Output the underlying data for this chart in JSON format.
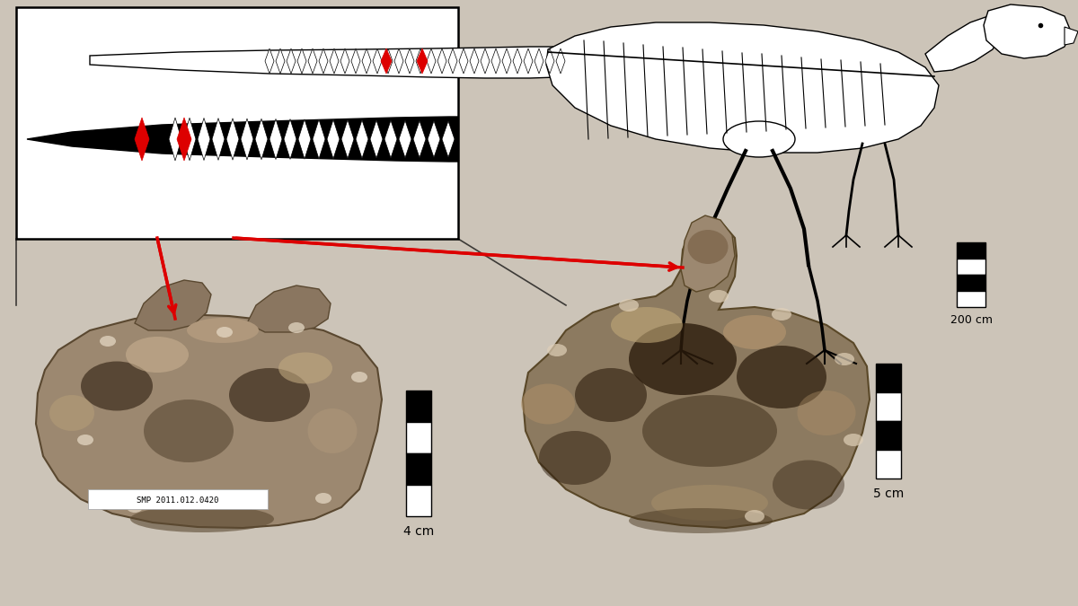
{
  "bg_color": "#ccc4b8",
  "white": "#ffffff",
  "black": "#000000",
  "red": "#dd0000",
  "bone1_base": "#9c8468",
  "bone1_mid": "#7a6248",
  "bone1_dark": "#3c2c1c",
  "bone1_light": "#c8b898",
  "bone2_base": "#8c7458",
  "bone2_dark": "#2c1c0c",
  "bone2_light": "#b8a078",
  "skeleton_line": "#111111",
  "scale_200": "200 cm",
  "scale_4": "4 cm",
  "scale_5": "5 cm",
  "specimen_label": "SMP 2011.012.0420",
  "fig_w": 12.0,
  "fig_h": 6.75,
  "dpi": 100
}
